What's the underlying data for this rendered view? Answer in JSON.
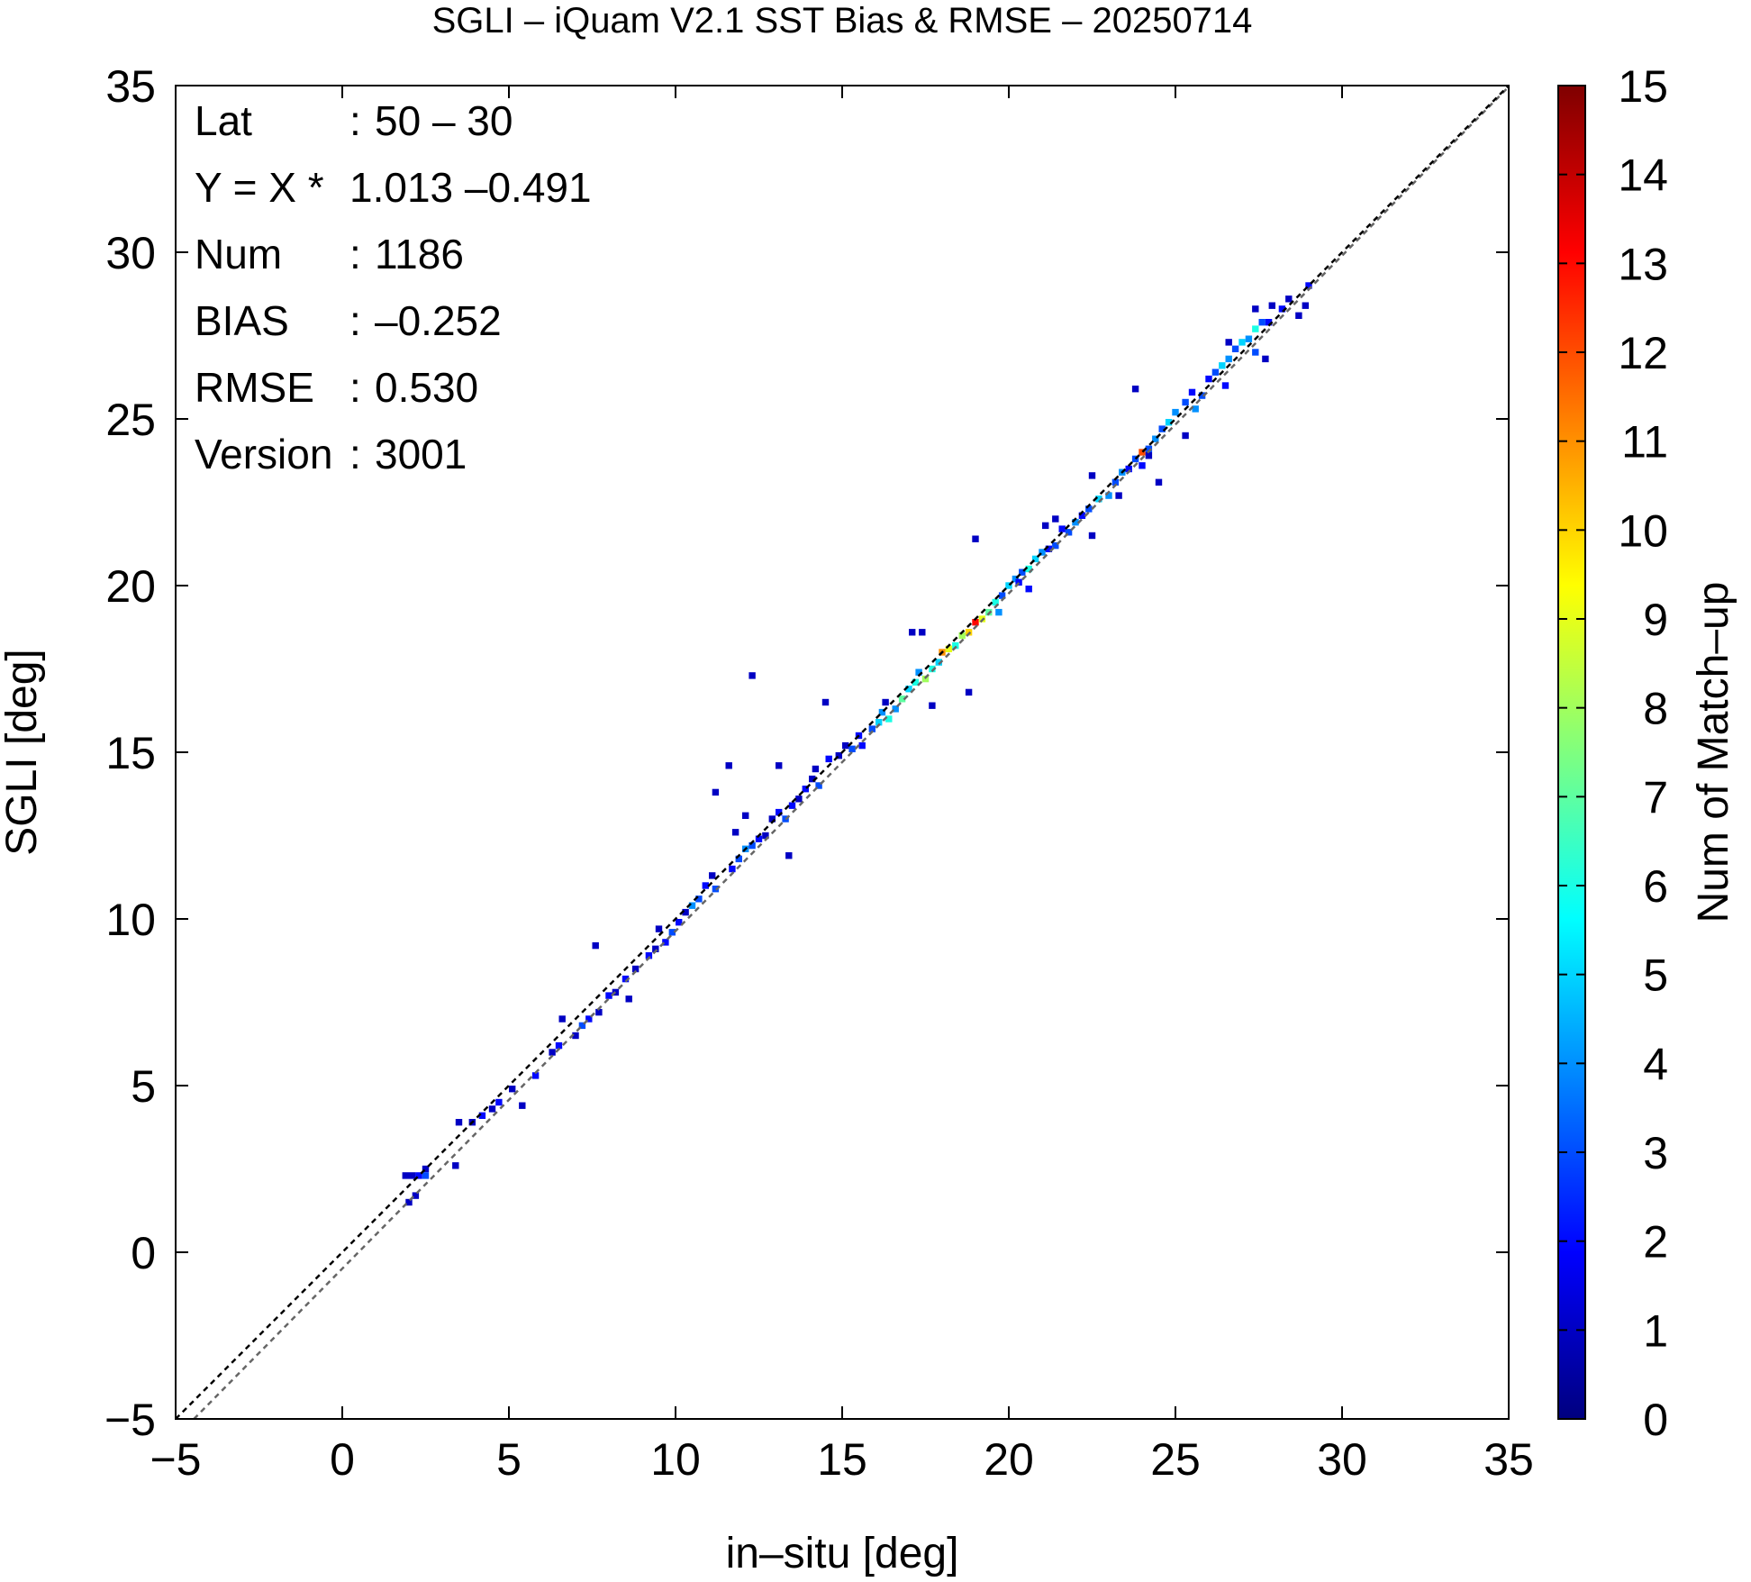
{
  "chart_data": {
    "type": "heatmap",
    "title": "SGLI – iQuam V2.1 SST Bias & RMSE  – 20250714",
    "xlabel": "in–situ [deg]",
    "ylabel": "SGLI [deg]",
    "xlim": [
      -5,
      35
    ],
    "ylim": [
      -5,
      35
    ],
    "x_ticks": [
      "−5",
      "0",
      "5",
      "10",
      "15",
      "20",
      "25",
      "30",
      "35"
    ],
    "y_ticks": [
      "−5",
      "0",
      "5",
      "10",
      "15",
      "20",
      "25",
      "30",
      "35"
    ],
    "grid": false,
    "reference_line": {
      "slope": 1,
      "intercept": 0,
      "style": "dashed",
      "color": "#000000"
    },
    "regression_line": {
      "slope": 1.013,
      "intercept": -0.491,
      "style": "dashed",
      "color": "#666666"
    },
    "stats": [
      {
        "key": "Lat",
        "sep": ":",
        "value": "50 – 30"
      },
      {
        "key": "Y = X *",
        "sep": "",
        "value": "1.013 –0.491"
      },
      {
        "key": "Num",
        "sep": ":",
        "value": "1186"
      },
      {
        "key": "BIAS",
        "sep": ":",
        "value": "–0.252"
      },
      {
        "key": "RMSE",
        "sep": ":",
        "value": "0.530"
      },
      {
        "key": "Version",
        "sep": ":",
        "value": "3001"
      }
    ],
    "colorbar": {
      "label": "Num of Match–up",
      "min": 0,
      "max": 15,
      "ticks": [
        "0",
        "1",
        "2",
        "3",
        "4",
        "5",
        "6",
        "7",
        "8",
        "9",
        "10",
        "11",
        "12",
        "13",
        "14",
        "15"
      ],
      "colors": [
        "#00007f",
        "#0000ff",
        "#007fff",
        "#00ffff",
        "#7fff7f",
        "#ffff00",
        "#ff7f00",
        "#ff0000",
        "#7f0000"
      ]
    },
    "bin_size": 0.2,
    "cells": [
      [
        1.8,
        2.2,
        1
      ],
      [
        2.0,
        2.2,
        1
      ],
      [
        2.2,
        2.2,
        2
      ],
      [
        2.4,
        2.4,
        1
      ],
      [
        2.4,
        2.2,
        3
      ],
      [
        1.9,
        1.4,
        1
      ],
      [
        2.1,
        1.6,
        1
      ],
      [
        3.3,
        2.5,
        1
      ],
      [
        3.4,
        3.8,
        1
      ],
      [
        3.8,
        3.8,
        1
      ],
      [
        4.1,
        4.0,
        2
      ],
      [
        4.4,
        4.2,
        1
      ],
      [
        4.6,
        4.4,
        2
      ],
      [
        5.3,
        4.3,
        1
      ],
      [
        5.0,
        4.8,
        1
      ],
      [
        5.7,
        5.2,
        2
      ],
      [
        6.2,
        5.9,
        1
      ],
      [
        6.4,
        6.1,
        2
      ],
      [
        6.9,
        6.4,
        1
      ],
      [
        6.5,
        6.9,
        1
      ],
      [
        7.1,
        6.7,
        3
      ],
      [
        7.3,
        6.9,
        2
      ],
      [
        7.6,
        7.1,
        1
      ],
      [
        7.9,
        7.6,
        2
      ],
      [
        8.1,
        7.7,
        1
      ],
      [
        8.4,
        8.1,
        2
      ],
      [
        8.7,
        8.4,
        1
      ],
      [
        8.5,
        7.5,
        1
      ],
      [
        9.1,
        8.8,
        2
      ],
      [
        9.3,
        9.0,
        1
      ],
      [
        7.5,
        9.1,
        1
      ],
      [
        9.4,
        9.6,
        1
      ],
      [
        9.6,
        9.2,
        2
      ],
      [
        9.8,
        9.5,
        3
      ],
      [
        10.0,
        9.8,
        2
      ],
      [
        10.2,
        10.1,
        1
      ],
      [
        10.4,
        10.3,
        4
      ],
      [
        10.6,
        10.5,
        3
      ],
      [
        10.8,
        10.9,
        2
      ],
      [
        11.0,
        11.2,
        1
      ],
      [
        11.1,
        10.8,
        3
      ],
      [
        11.6,
        11.4,
        2
      ],
      [
        11.8,
        11.7,
        3
      ],
      [
        12.0,
        12.0,
        4
      ],
      [
        12.2,
        12.1,
        3
      ],
      [
        12.4,
        12.3,
        2
      ],
      [
        12.6,
        12.4,
        1
      ],
      [
        11.7,
        12.5,
        1
      ],
      [
        12.0,
        13.0,
        1
      ],
      [
        12.8,
        12.9,
        1
      ],
      [
        13.0,
        13.1,
        2
      ],
      [
        13.2,
        12.9,
        3
      ],
      [
        13.4,
        13.3,
        2
      ],
      [
        13.6,
        13.5,
        1
      ],
      [
        13.8,
        13.8,
        2
      ],
      [
        14.0,
        14.1,
        1
      ],
      [
        11.1,
        13.7,
        1
      ],
      [
        11.5,
        14.5,
        1
      ],
      [
        12.2,
        17.2,
        1
      ],
      [
        13.0,
        14.5,
        1
      ],
      [
        13.3,
        11.8,
        1
      ],
      [
        14.1,
        14.4,
        1
      ],
      [
        14.2,
        13.9,
        3
      ],
      [
        14.5,
        14.7,
        2
      ],
      [
        14.8,
        14.8,
        1
      ],
      [
        14.4,
        16.4,
        1
      ],
      [
        15.0,
        15.1,
        1
      ],
      [
        15.2,
        15.0,
        3
      ],
      [
        15.4,
        15.4,
        2
      ],
      [
        15.5,
        15.1,
        2
      ],
      [
        15.8,
        15.6,
        3
      ],
      [
        16.0,
        15.8,
        5
      ],
      [
        16.1,
        16.1,
        4
      ],
      [
        16.2,
        16.4,
        1
      ],
      [
        16.3,
        15.9,
        6
      ],
      [
        16.5,
        16.2,
        4
      ],
      [
        16.7,
        16.5,
        7
      ],
      [
        16.9,
        16.8,
        5
      ],
      [
        17.1,
        17.0,
        6
      ],
      [
        17.2,
        17.3,
        4
      ],
      [
        17.4,
        17.1,
        8
      ],
      [
        17.6,
        17.4,
        6
      ],
      [
        17.8,
        17.6,
        5
      ],
      [
        17.0,
        18.5,
        1
      ],
      [
        17.3,
        18.5,
        1
      ],
      [
        17.6,
        16.3,
        1
      ],
      [
        17.9,
        17.9,
        11
      ],
      [
        18.1,
        18.0,
        9
      ],
      [
        18.3,
        18.1,
        6
      ],
      [
        18.5,
        18.4,
        8
      ],
      [
        18.7,
        18.5,
        10
      ],
      [
        18.9,
        18.8,
        13
      ],
      [
        19.1,
        18.9,
        9
      ],
      [
        19.3,
        19.1,
        7
      ],
      [
        19.5,
        19.4,
        6
      ],
      [
        19.6,
        19.1,
        4
      ],
      [
        19.7,
        19.6,
        3
      ],
      [
        19.9,
        19.9,
        5
      ],
      [
        18.7,
        16.7,
        1
      ],
      [
        20.1,
        20.1,
        4
      ],
      [
        20.3,
        20.3,
        3
      ],
      [
        20.5,
        20.4,
        6
      ],
      [
        20.7,
        20.7,
        5
      ],
      [
        20.9,
        20.9,
        4
      ],
      [
        21.1,
        21.0,
        2
      ],
      [
        21.3,
        21.1,
        3
      ],
      [
        18.9,
        21.3,
        1
      ],
      [
        20.2,
        20.0,
        2
      ],
      [
        20.5,
        19.8,
        2
      ],
      [
        21.0,
        21.7,
        1
      ],
      [
        21.3,
        21.9,
        1
      ],
      [
        21.5,
        21.6,
        2
      ],
      [
        21.7,
        21.5,
        3
      ],
      [
        21.9,
        21.8,
        4
      ],
      [
        22.1,
        22.0,
        2
      ],
      [
        22.3,
        22.2,
        3
      ],
      [
        22.6,
        22.5,
        5
      ],
      [
        22.9,
        22.6,
        4
      ],
      [
        23.1,
        23.0,
        3
      ],
      [
        23.3,
        23.3,
        4
      ],
      [
        23.5,
        23.4,
        2
      ],
      [
        23.7,
        23.7,
        3
      ],
      [
        23.9,
        23.9,
        12
      ],
      [
        24.1,
        24.0,
        3
      ],
      [
        24.3,
        24.3,
        4
      ],
      [
        22.4,
        21.4,
        1
      ],
      [
        23.2,
        22.6,
        1
      ],
      [
        23.7,
        25.8,
        1
      ],
      [
        23.9,
        23.5,
        2
      ],
      [
        24.1,
        23.8,
        1
      ],
      [
        24.5,
        24.6,
        3
      ],
      [
        24.7,
        24.8,
        5
      ],
      [
        24.9,
        25.1,
        4
      ],
      [
        25.2,
        25.4,
        3
      ],
      [
        25.4,
        25.7,
        2
      ],
      [
        25.5,
        25.2,
        4
      ],
      [
        25.7,
        25.6,
        3
      ],
      [
        25.9,
        26.1,
        2
      ],
      [
        26.1,
        26.3,
        3
      ],
      [
        26.3,
        26.5,
        5
      ],
      [
        26.5,
        26.7,
        4
      ],
      [
        26.7,
        27.0,
        3
      ],
      [
        26.9,
        27.2,
        5
      ],
      [
        27.1,
        27.3,
        4
      ],
      [
        27.3,
        27.6,
        6
      ],
      [
        27.5,
        27.8,
        3
      ],
      [
        27.7,
        27.8,
        2
      ],
      [
        26.5,
        27.2,
        1
      ],
      [
        27.3,
        26.9,
        3
      ],
      [
        27.6,
        26.7,
        1
      ],
      [
        27.3,
        28.2,
        1
      ],
      [
        27.8,
        28.3,
        1
      ],
      [
        28.1,
        28.2,
        2
      ],
      [
        28.3,
        28.5,
        1
      ],
      [
        28.9,
        28.9,
        2
      ],
      [
        28.6,
        28.0,
        1
      ],
      [
        28.8,
        28.3,
        1
      ],
      [
        22.4,
        23.2,
        1
      ],
      [
        24.4,
        23.0,
        1
      ],
      [
        25.2,
        24.4,
        1
      ],
      [
        26.4,
        25.9,
        2
      ]
    ]
  }
}
